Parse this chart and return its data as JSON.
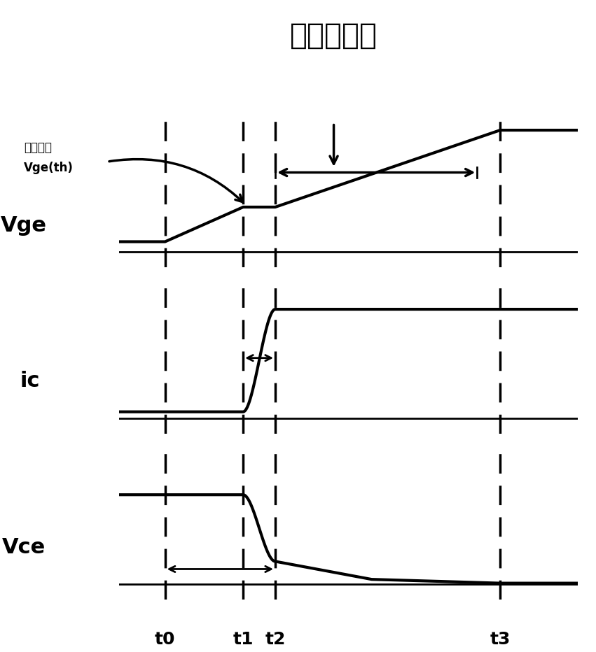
{
  "title": "米勒效应区",
  "label_vge": "Vge",
  "label_ic": "ic",
  "label_vce": "Vce",
  "label_threshold_line1": "阈値电压",
  "label_threshold_line2": "Vge(th)",
  "t_labels": [
    "t0",
    "t1",
    "t2",
    "t3"
  ],
  "bg_color": "#ffffff",
  "line_color": "#000000",
  "font_size_title": 30,
  "font_size_labels": 20,
  "font_size_t": 18,
  "lw": 3.0,
  "dashed_lw": 2.5,
  "t0": 0.1,
  "t1": 0.27,
  "t1b": 0.34,
  "t2": 0.34,
  "t3": 0.83,
  "tend": 1.0
}
